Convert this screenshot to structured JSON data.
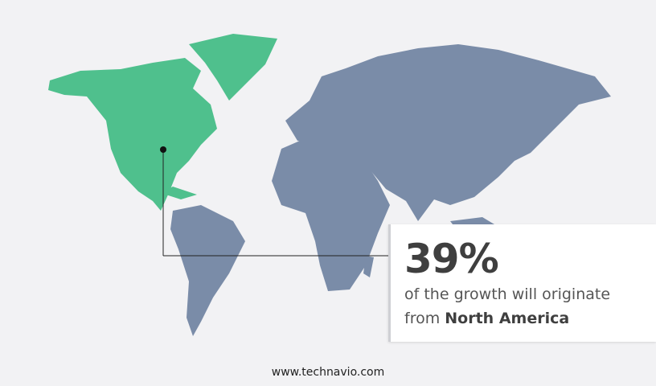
{
  "region_highlighted": "North America",
  "colors": {
    "highlight": "#4fc08d",
    "other_regions": "#7a8ca8",
    "background": "#f2f2f4",
    "text": "#3f3f3f"
  },
  "callout": {
    "percentage": "39%",
    "line1": "of the growth will originate",
    "line2_prefix": "from",
    "line2_region": "North America"
  },
  "footer": {
    "url": "www.technavio.com"
  }
}
